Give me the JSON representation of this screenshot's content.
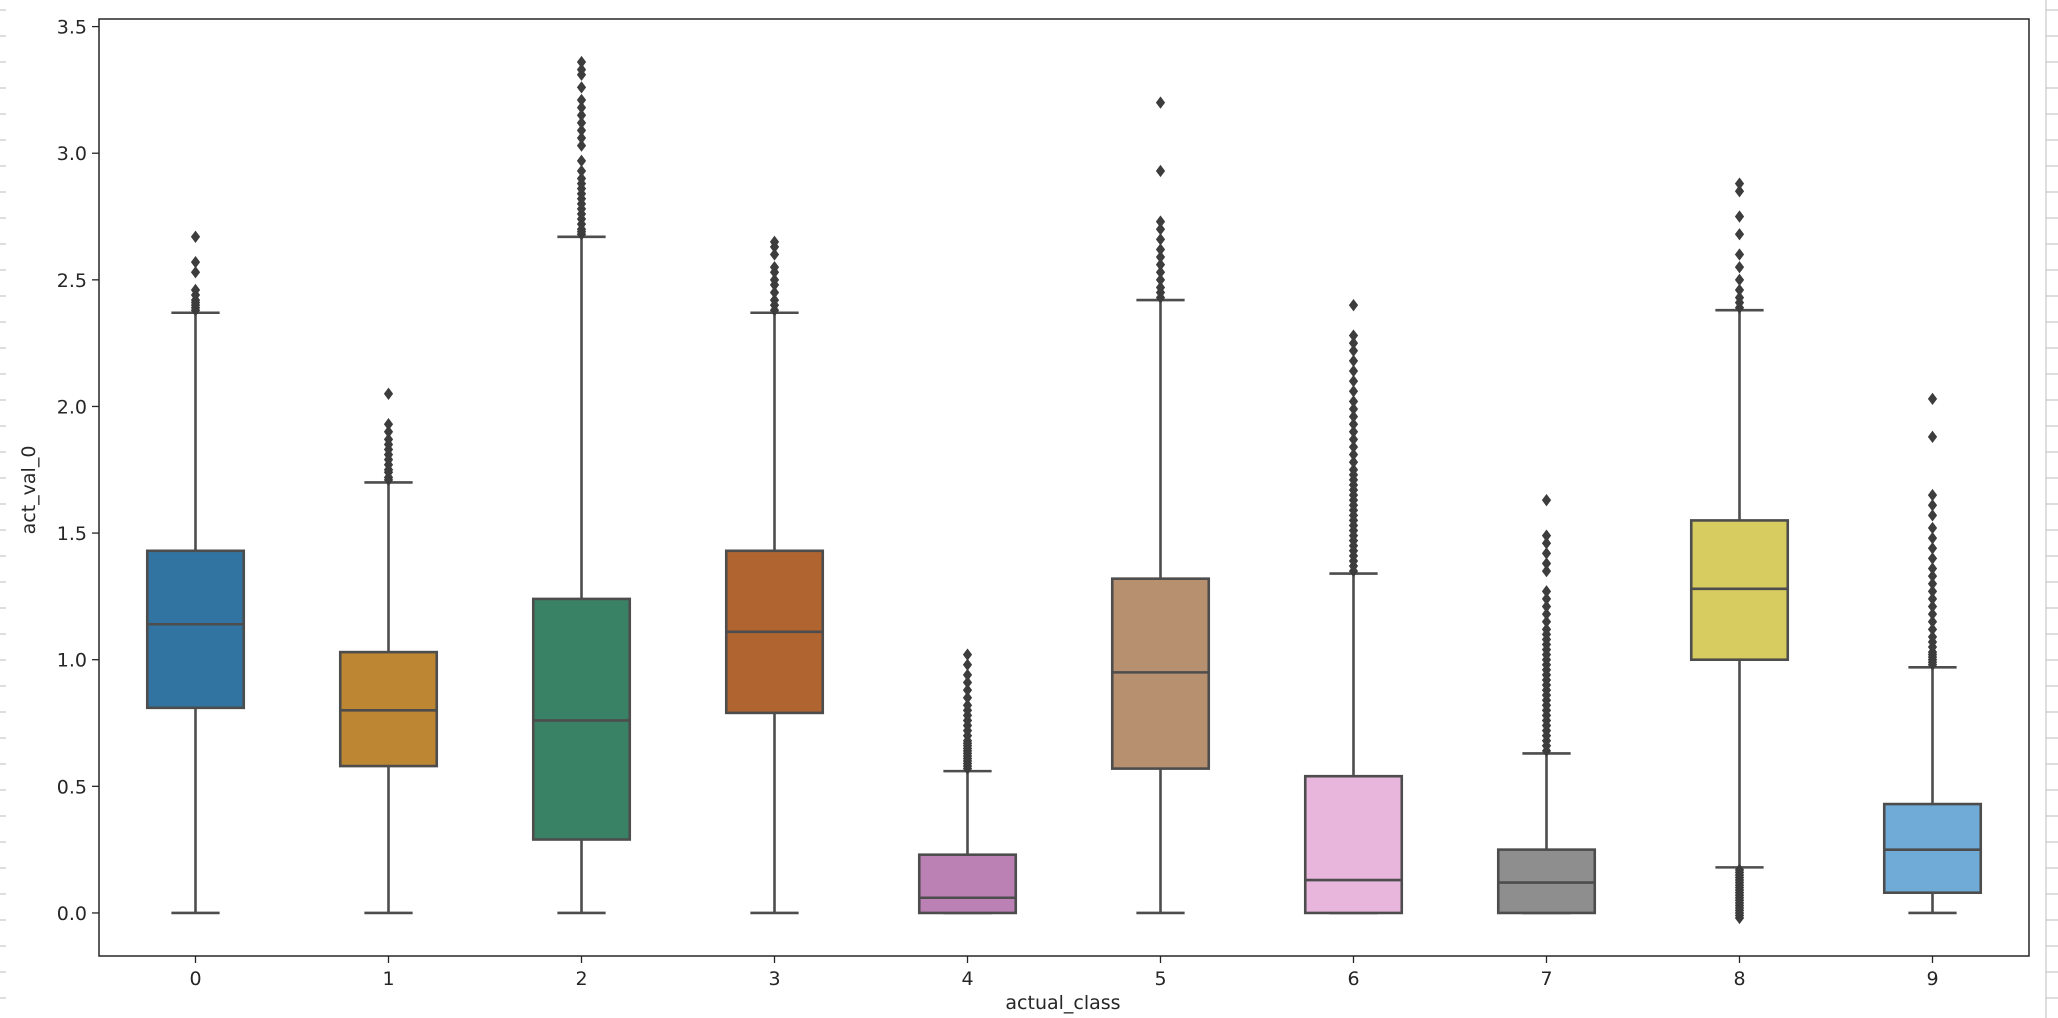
{
  "chart_data": {
    "type": "boxplot",
    "xlabel": "actual_class",
    "ylabel": "act_val_0",
    "ylim": [
      -0.17,
      3.53
    ],
    "yticks": [
      0.0,
      0.5,
      1.0,
      1.5,
      2.0,
      2.5,
      3.0,
      3.5
    ],
    "ytick_labels": [
      "0.0",
      "0.5",
      "1.0",
      "1.5",
      "2.0",
      "2.5",
      "3.0",
      "3.5"
    ],
    "categories": [
      "0",
      "1",
      "2",
      "3",
      "4",
      "5",
      "6",
      "7",
      "8",
      "9"
    ],
    "colors": {
      "line": "#4d4d4d",
      "axes": "#262626",
      "boxes": [
        "#3274a1",
        "#bd8633",
        "#3a8266",
        "#b06430",
        "#bb81b4",
        "#b7916f",
        "#e8b5dc",
        "#8e8e8e",
        "#d7cc5f",
        "#6fabd6"
      ]
    },
    "boxes": [
      {
        "category": "0",
        "whisker_low": 0.0,
        "q1": 0.81,
        "median": 1.14,
        "q3": 1.43,
        "whisker_high": 2.37,
        "outliers": [
          2.38,
          2.39,
          2.4,
          2.41,
          2.42,
          2.44,
          2.46,
          2.53,
          2.57,
          2.67
        ]
      },
      {
        "category": "1",
        "whisker_low": 0.0,
        "q1": 0.58,
        "median": 0.8,
        "q3": 1.03,
        "whisker_high": 1.7,
        "outliers": [
          1.71,
          1.72,
          1.74,
          1.75,
          1.77,
          1.79,
          1.81,
          1.83,
          1.85,
          1.87,
          1.9,
          1.93,
          2.05
        ]
      },
      {
        "category": "2",
        "whisker_low": 0.0,
        "q1": 0.29,
        "median": 0.76,
        "q3": 1.24,
        "whisker_high": 2.67,
        "outliers": [
          2.68,
          2.69,
          2.7,
          2.72,
          2.74,
          2.76,
          2.78,
          2.8,
          2.82,
          2.84,
          2.86,
          2.88,
          2.9,
          2.93,
          2.97,
          3.03,
          3.06,
          3.09,
          3.12,
          3.15,
          3.18,
          3.21,
          3.26,
          3.31,
          3.33,
          3.36
        ]
      },
      {
        "category": "3",
        "whisker_low": 0.0,
        "q1": 0.79,
        "median": 1.11,
        "q3": 1.43,
        "whisker_high": 2.37,
        "outliers": [
          2.38,
          2.4,
          2.42,
          2.45,
          2.48,
          2.5,
          2.53,
          2.55,
          2.6,
          2.63,
          2.65
        ]
      },
      {
        "category": "4",
        "whisker_low": 0.0,
        "q1": 0.0,
        "median": 0.06,
        "q3": 0.23,
        "whisker_high": 0.56,
        "outliers": [
          0.57,
          0.58,
          0.59,
          0.6,
          0.61,
          0.62,
          0.63,
          0.64,
          0.65,
          0.66,
          0.67,
          0.68,
          0.7,
          0.72,
          0.74,
          0.76,
          0.78,
          0.8,
          0.82,
          0.85,
          0.88,
          0.91,
          0.94,
          0.98,
          1.02
        ]
      },
      {
        "category": "5",
        "whisker_low": 0.0,
        "q1": 0.57,
        "median": 0.95,
        "q3": 1.32,
        "whisker_high": 2.42,
        "outliers": [
          2.43,
          2.45,
          2.47,
          2.5,
          2.53,
          2.56,
          2.59,
          2.62,
          2.66,
          2.7,
          2.73,
          2.93,
          3.2
        ]
      },
      {
        "category": "6",
        "whisker_low": 0.0,
        "q1": 0.0,
        "median": 0.13,
        "q3": 0.54,
        "whisker_high": 1.34,
        "outliers": [
          1.35,
          1.37,
          1.39,
          1.41,
          1.43,
          1.45,
          1.47,
          1.49,
          1.51,
          1.53,
          1.55,
          1.57,
          1.59,
          1.61,
          1.63,
          1.65,
          1.67,
          1.69,
          1.71,
          1.73,
          1.75,
          1.78,
          1.81,
          1.84,
          1.87,
          1.9,
          1.93,
          1.96,
          1.99,
          2.02,
          2.06,
          2.1,
          2.14,
          2.18,
          2.22,
          2.25,
          2.28,
          2.4
        ]
      },
      {
        "category": "7",
        "whisker_low": 0.0,
        "q1": 0.0,
        "median": 0.12,
        "q3": 0.25,
        "whisker_high": 0.63,
        "outliers": [
          0.64,
          0.66,
          0.68,
          0.7,
          0.72,
          0.74,
          0.76,
          0.78,
          0.8,
          0.82,
          0.84,
          0.86,
          0.88,
          0.9,
          0.92,
          0.94,
          0.96,
          0.98,
          1.0,
          1.02,
          1.04,
          1.06,
          1.08,
          1.1,
          1.12,
          1.15,
          1.18,
          1.21,
          1.24,
          1.27,
          1.35,
          1.38,
          1.42,
          1.46,
          1.49,
          1.63
        ]
      },
      {
        "category": "8",
        "whisker_low": 0.18,
        "q1": 1.0,
        "median": 1.28,
        "q3": 1.55,
        "whisker_high": 2.38,
        "outliers": [
          -0.02,
          -0.01,
          0.0,
          0.01,
          0.02,
          0.03,
          0.04,
          0.05,
          0.06,
          0.07,
          0.08,
          0.09,
          0.1,
          0.11,
          0.12,
          0.13,
          0.14,
          0.15,
          0.16,
          0.17,
          2.39,
          2.41,
          2.43,
          2.46,
          2.5,
          2.55,
          2.6,
          2.68,
          2.75,
          2.85,
          2.88
        ]
      },
      {
        "category": "9",
        "whisker_low": 0.0,
        "q1": 0.08,
        "median": 0.25,
        "q3": 0.43,
        "whisker_high": 0.97,
        "outliers": [
          0.98,
          0.99,
          1.0,
          1.01,
          1.02,
          1.03,
          1.05,
          1.07,
          1.09,
          1.12,
          1.15,
          1.18,
          1.21,
          1.24,
          1.27,
          1.3,
          1.33,
          1.36,
          1.4,
          1.44,
          1.48,
          1.52,
          1.57,
          1.61,
          1.65,
          1.88,
          2.03
        ]
      }
    ]
  }
}
